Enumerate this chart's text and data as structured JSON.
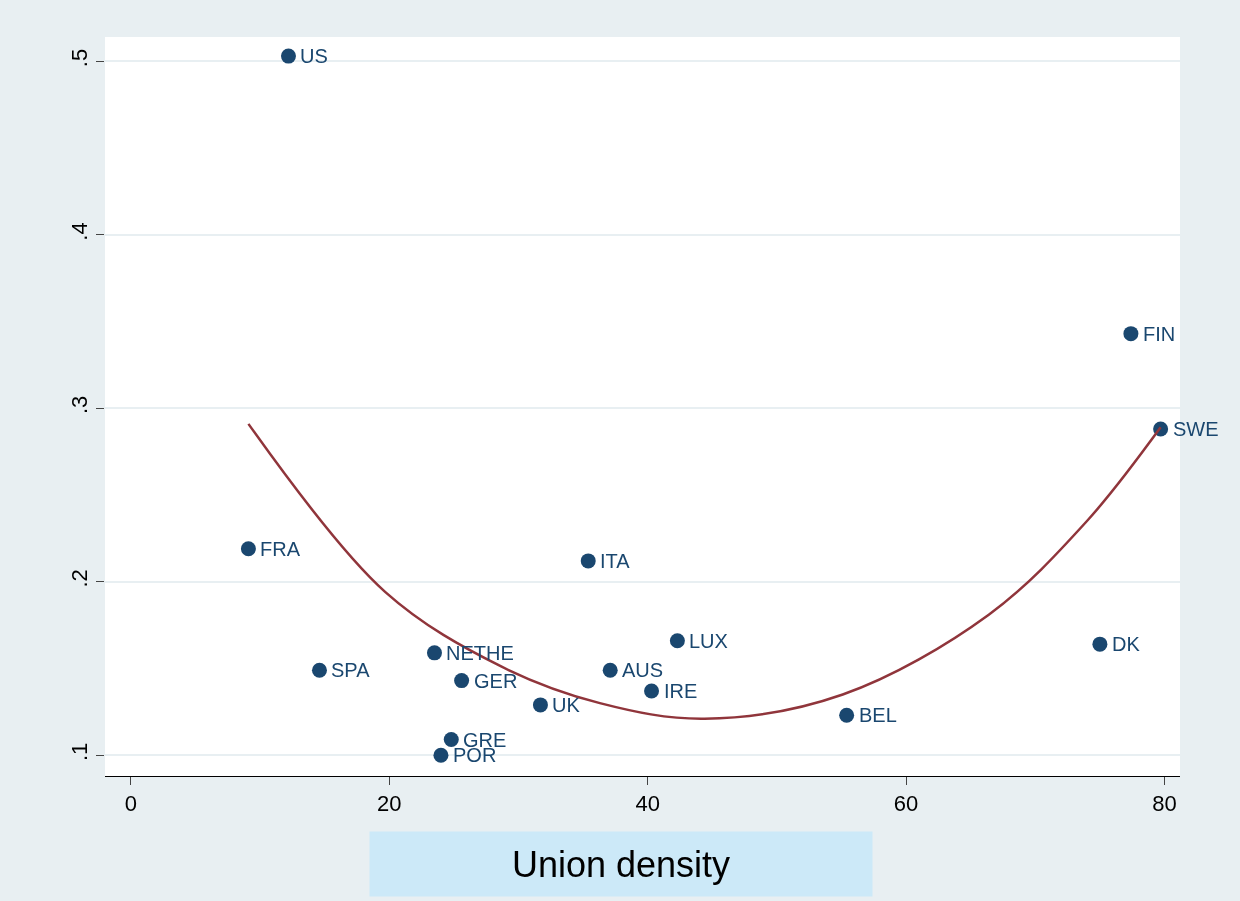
{
  "chart_data": {
    "type": "scatter",
    "xlabel": "Union density",
    "xlim": [
      -2,
      81.2
    ],
    "xticks": [
      0,
      20,
      40,
      60,
      80
    ],
    "ylim": [
      0.088,
      0.514
    ],
    "yticks": [
      {
        "value": 0.1,
        "label": ".1"
      },
      {
        "value": 0.2,
        "label": ".2"
      },
      {
        "value": 0.3,
        "label": ".3"
      },
      {
        "value": 0.4,
        "label": ".4"
      },
      {
        "value": 0.5,
        "label": ".5"
      }
    ],
    "grid": "y",
    "legend": false,
    "marker": "circle",
    "annotations": [
      {
        "text": "US",
        "x": 12.2,
        "y": 0.503
      },
      {
        "text": "FIN",
        "x": 77.4,
        "y": 0.343
      },
      {
        "text": "SWE",
        "x": 79.7,
        "y": 0.288
      },
      {
        "text": "FRA",
        "x": 9.1,
        "y": 0.219
      },
      {
        "text": "ITA",
        "x": 35.4,
        "y": 0.212
      },
      {
        "text": "LUX",
        "x": 42.3,
        "y": 0.166
      },
      {
        "text": "DK",
        "x": 75.0,
        "y": 0.164
      },
      {
        "text": "NETHE",
        "x": 23.5,
        "y": 0.159
      },
      {
        "text": "SPA",
        "x": 14.6,
        "y": 0.149
      },
      {
        "text": "AUS",
        "x": 37.1,
        "y": 0.149
      },
      {
        "text": "GER",
        "x": 25.6,
        "y": 0.143
      },
      {
        "text": "IRE",
        "x": 40.3,
        "y": 0.137
      },
      {
        "text": "UK",
        "x": 31.7,
        "y": 0.129
      },
      {
        "text": "BEL",
        "x": 55.4,
        "y": 0.123
      },
      {
        "text": "GRE",
        "x": 24.8,
        "y": 0.109
      },
      {
        "text": "POR",
        "x": 24.0,
        "y": 0.1
      }
    ],
    "series": [
      {
        "color": "#1a476f",
        "x": [
          12.2,
          77.4,
          79.7,
          9.1,
          35.4,
          42.3,
          75.0,
          23.5,
          14.6,
          37.1,
          25.6,
          40.3,
          31.7,
          55.4,
          24.8,
          24.0
        ],
        "values": [
          0.503,
          0.343,
          0.288,
          0.219,
          0.212,
          0.166,
          0.164,
          0.159,
          0.149,
          0.149,
          0.143,
          0.137,
          0.129,
          0.123,
          0.109,
          0.1
        ]
      },
      {
        "type": "line",
        "color": "#90353b",
        "marker": "none",
        "x": [
          9.1,
          19.7,
          28.7,
          36.3,
          44.4,
          55.1,
          66.4,
          74.0,
          79.7
        ],
        "values": [
          0.291,
          0.194,
          0.151,
          0.13,
          0.121,
          0.135,
          0.181,
          0.235,
          0.289
        ]
      }
    ]
  }
}
